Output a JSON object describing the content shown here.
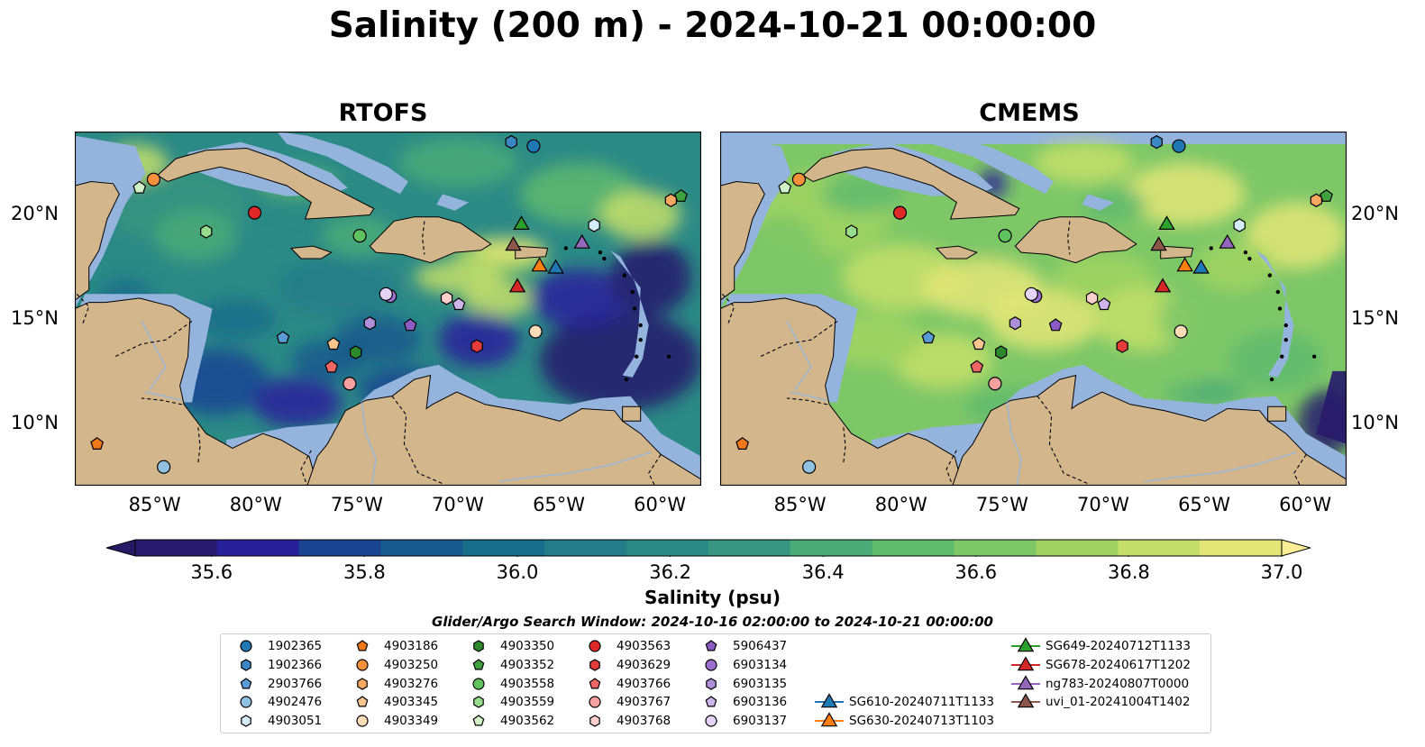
{
  "title": "Salinity (200 m) - 2024-10-21 00:00:00",
  "panels": [
    {
      "title": "RTOFS",
      "side": "left"
    },
    {
      "title": "CMEMS",
      "side": "right"
    }
  ],
  "axes": {
    "lon_range": [
      -89,
      -58
    ],
    "lat_range": [
      7,
      24
    ],
    "lon_ticks": [
      "85°W",
      "80°W",
      "75°W",
      "70°W",
      "65°W",
      "60°W"
    ],
    "lon_tick_values": [
      -85,
      -80,
      -75,
      -70,
      -65,
      -60
    ],
    "lat_ticks": [
      "20°N",
      "15°N",
      "10°N"
    ],
    "lat_tick_values": [
      20,
      15,
      10
    ]
  },
  "colorbar": {
    "label": "Salinity (psu)",
    "min": 35.5,
    "max": 37.0,
    "ticks": [
      "35.6",
      "35.8",
      "36.0",
      "36.2",
      "36.4",
      "36.6",
      "36.8",
      "37.0"
    ],
    "tick_values": [
      35.6,
      35.8,
      36.0,
      36.2,
      36.4,
      36.6,
      36.8,
      37.0
    ],
    "colors": [
      "#271a6c",
      "#28209a",
      "#1b4493",
      "#175a8d",
      "#186d8a",
      "#237d88",
      "#2b8a85",
      "#37957f",
      "#4aaa78",
      "#5fba6e",
      "#7dc767",
      "#a0d362",
      "#c6df6a",
      "#e4e677"
    ],
    "extend_low": "#261a66",
    "extend_high": "#fcee95"
  },
  "search_window": "Glider/Argo Search Window: 2024-10-16 02:00:00 to 2024-10-21 00:00:00",
  "colors": {
    "land": "#d3b68b",
    "shelf": "#94b4dd"
  },
  "legend": [
    {
      "label": "1902365",
      "marker": "circle",
      "color": "#1f77b4"
    },
    {
      "label": "1902366",
      "marker": "hexagon",
      "color": "#3b87c4"
    },
    {
      "label": "2903766",
      "marker": "pentagon",
      "color": "#5a9bd5"
    },
    {
      "label": "4902476",
      "marker": "circle",
      "color": "#90c1e0"
    },
    {
      "label": "4903051",
      "marker": "hexagon",
      "color": "#d4ecf7"
    },
    {
      "label": "4903186",
      "marker": "pentagon",
      "color": "#f07818"
    },
    {
      "label": "4903250",
      "marker": "circle",
      "color": "#f5903c"
    },
    {
      "label": "4903276",
      "marker": "hexagon",
      "color": "#f7a860"
    },
    {
      "label": "4903345",
      "marker": "pentagon",
      "color": "#f9c690"
    },
    {
      "label": "4903349",
      "marker": "circle",
      "color": "#fbdcb8"
    },
    {
      "label": "4903350",
      "marker": "hexagon",
      "color": "#2c8a2c"
    },
    {
      "label": "4903352",
      "marker": "pentagon",
      "color": "#3ea33e"
    },
    {
      "label": "4903558",
      "marker": "circle",
      "color": "#5fc25f"
    },
    {
      "label": "4903559",
      "marker": "hexagon",
      "color": "#98dd8e"
    },
    {
      "label": "4903562",
      "marker": "pentagon",
      "color": "#d1f2c8"
    },
    {
      "label": "4903563",
      "marker": "circle",
      "color": "#e02828"
    },
    {
      "label": "4903629",
      "marker": "hexagon",
      "color": "#e43b3b"
    },
    {
      "label": "4903766",
      "marker": "pentagon",
      "color": "#ef6666"
    },
    {
      "label": "4903767",
      "marker": "circle",
      "color": "#f6a0a0"
    },
    {
      "label": "4903768",
      "marker": "hexagon",
      "color": "#fbd0cc"
    },
    {
      "label": "5906437",
      "marker": "pentagon",
      "color": "#8c5cc4"
    },
    {
      "label": "6903134",
      "marker": "circle",
      "color": "#9d6fcf"
    },
    {
      "label": "6903135",
      "marker": "hexagon",
      "color": "#b08fd9"
    },
    {
      "label": "6903136",
      "marker": "pentagon",
      "color": "#cdb4ea"
    },
    {
      "label": "6903137",
      "marker": "circle",
      "color": "#e4d3f5"
    },
    {
      "label": "SG610-20240711T1133",
      "marker": "triangle-line",
      "color": "#1f77b4"
    },
    {
      "label": "SG630-20240713T1103",
      "marker": "triangle-line",
      "color": "#ff7f0e"
    },
    {
      "label": "SG649-20240712T1133",
      "marker": "triangle-line",
      "color": "#2ca02c"
    },
    {
      "label": "SG678-20240617T1202",
      "marker": "triangle-line",
      "color": "#d62728"
    },
    {
      "label": "ng783-20240807T0000",
      "marker": "triangle-line",
      "color": "#9467bd"
    },
    {
      "label": "uvi_01-20241004T1402",
      "marker": "triangle-line",
      "color": "#8c564b"
    }
  ],
  "observations": [
    {
      "id": "1902365",
      "lon": -66.3,
      "lat": 23.3
    },
    {
      "id": "1902366",
      "lon": -67.4,
      "lat": 23.5
    },
    {
      "id": "2903766",
      "lon": -78.7,
      "lat": 14.1
    },
    {
      "id": "4902476",
      "lon": -84.6,
      "lat": 7.9
    },
    {
      "id": "4903051",
      "lon": -63.3,
      "lat": 19.5
    },
    {
      "id": "4903186",
      "lon": -87.9,
      "lat": 9.0
    },
    {
      "id": "4903250",
      "lon": -85.1,
      "lat": 21.7
    },
    {
      "id": "4903276",
      "lon": -59.5,
      "lat": 20.7
    },
    {
      "id": "4903345",
      "lon": -76.2,
      "lat": 13.8
    },
    {
      "id": "4903349",
      "lon": -66.2,
      "lat": 14.4
    },
    {
      "id": "4903350",
      "lon": -75.1,
      "lat": 13.4
    },
    {
      "id": "4903352",
      "lon": -59.0,
      "lat": 20.9
    },
    {
      "id": "4903558",
      "lon": -74.9,
      "lat": 19.0
    },
    {
      "id": "4903559",
      "lon": -82.5,
      "lat": 19.2
    },
    {
      "id": "4903562",
      "lon": -85.8,
      "lat": 21.3
    },
    {
      "id": "4903563",
      "lon": -80.1,
      "lat": 20.1
    },
    {
      "id": "4903629",
      "lon": -69.1,
      "lat": 13.7
    },
    {
      "id": "4903766",
      "lon": -76.3,
      "lat": 12.7
    },
    {
      "id": "4903767",
      "lon": -75.4,
      "lat": 11.9
    },
    {
      "id": "4903768",
      "lon": -70.6,
      "lat": 16.0
    },
    {
      "id": "5906437",
      "lon": -72.4,
      "lat": 14.7
    },
    {
      "id": "6903134",
      "lon": -73.4,
      "lat": 16.1
    },
    {
      "id": "6903135",
      "lon": -74.4,
      "lat": 14.8
    },
    {
      "id": "6903136",
      "lon": -70.0,
      "lat": 15.7
    },
    {
      "id": "6903137",
      "lon": -73.6,
      "lat": 16.2
    },
    {
      "id": "SG610-20240711T1133",
      "lon": -65.2,
      "lat": 17.5
    },
    {
      "id": "SG630-20240713T1103",
      "lon": -66.0,
      "lat": 17.6
    },
    {
      "id": "SG649-20240712T1133",
      "lon": -66.9,
      "lat": 19.6
    },
    {
      "id": "SG678-20240617T1202",
      "lon": -67.1,
      "lat": 16.6
    },
    {
      "id": "ng783-20240807T0000",
      "lon": -63.9,
      "lat": 18.7
    },
    {
      "id": "uvi_01-20241004T1402",
      "lon": -67.3,
      "lat": 18.6
    }
  ]
}
